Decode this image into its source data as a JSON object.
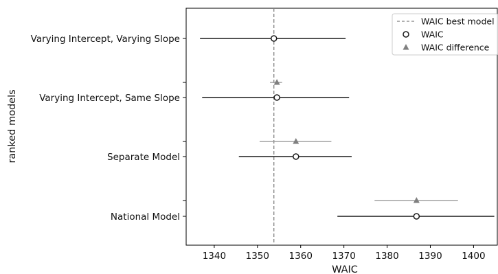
{
  "chart_data": {
    "type": "scatter",
    "title": "",
    "xlabel": "WAIC",
    "ylabel": "ranked models",
    "xlim": [
      1333.5,
      1405.5
    ],
    "xticks": [
      1340,
      1350,
      1360,
      1370,
      1380,
      1390,
      1400
    ],
    "grid": false,
    "legend_position": "top-right",
    "best_waic": 1353.8,
    "models": [
      {
        "label": "Varying Intercept, Varying Slope",
        "waic": 1353.8,
        "waic_low": 1336.7,
        "waic_high": 1370.4,
        "diff": null,
        "diff_low": null,
        "diff_high": null
      },
      {
        "label": "Varying Intercept, Same Slope",
        "waic": 1354.5,
        "waic_low": 1337.2,
        "waic_high": 1371.2,
        "diff": 1354.5,
        "diff_low": 1352.9,
        "diff_high": 1355.7
      },
      {
        "label": "Separate Model",
        "waic": 1358.9,
        "waic_low": 1345.7,
        "waic_high": 1371.8,
        "diff": 1358.9,
        "diff_low": 1350.5,
        "diff_high": 1367.1
      },
      {
        "label": "National Model",
        "waic": 1386.8,
        "waic_low": 1368.5,
        "waic_high": 1404.8,
        "diff": 1386.8,
        "diff_low": 1377.1,
        "diff_high": 1396.4
      }
    ],
    "legend": [
      {
        "label": "WAIC best model",
        "marker": "dashed-line"
      },
      {
        "label": "WAIC",
        "marker": "open-circle"
      },
      {
        "label": "WAIC difference",
        "marker": "triangle"
      }
    ],
    "colors": {
      "waic": "#1a1a1a",
      "diff": "#808080",
      "best_line": "#808080",
      "diff_errorbar": "#a0a0a0"
    }
  }
}
